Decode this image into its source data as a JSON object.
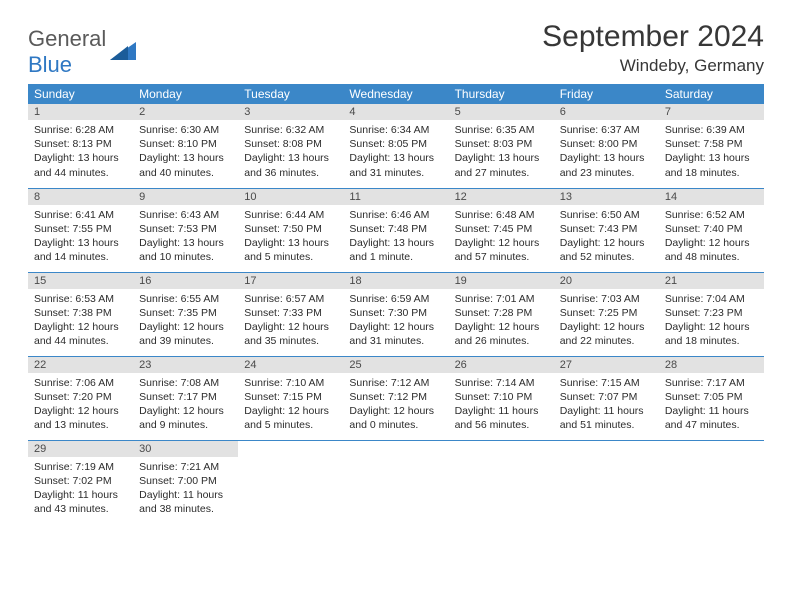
{
  "logo": {
    "word1": "General",
    "word2": "Blue"
  },
  "title": "September 2024",
  "location": "Windeby, Germany",
  "header_bg": "#3b87c8",
  "daynum_bg": "#e2e2e2",
  "text_color": "#2c2c2c",
  "weekdays": [
    "Sunday",
    "Monday",
    "Tuesday",
    "Wednesday",
    "Thursday",
    "Friday",
    "Saturday"
  ],
  "weeks": [
    [
      {
        "n": "1",
        "sr": "6:28 AM",
        "ss": "8:13 PM",
        "dl": "13 hours and 44 minutes."
      },
      {
        "n": "2",
        "sr": "6:30 AM",
        "ss": "8:10 PM",
        "dl": "13 hours and 40 minutes."
      },
      {
        "n": "3",
        "sr": "6:32 AM",
        "ss": "8:08 PM",
        "dl": "13 hours and 36 minutes."
      },
      {
        "n": "4",
        "sr": "6:34 AM",
        "ss": "8:05 PM",
        "dl": "13 hours and 31 minutes."
      },
      {
        "n": "5",
        "sr": "6:35 AM",
        "ss": "8:03 PM",
        "dl": "13 hours and 27 minutes."
      },
      {
        "n": "6",
        "sr": "6:37 AM",
        "ss": "8:00 PM",
        "dl": "13 hours and 23 minutes."
      },
      {
        "n": "7",
        "sr": "6:39 AM",
        "ss": "7:58 PM",
        "dl": "13 hours and 18 minutes."
      }
    ],
    [
      {
        "n": "8",
        "sr": "6:41 AM",
        "ss": "7:55 PM",
        "dl": "13 hours and 14 minutes."
      },
      {
        "n": "9",
        "sr": "6:43 AM",
        "ss": "7:53 PM",
        "dl": "13 hours and 10 minutes."
      },
      {
        "n": "10",
        "sr": "6:44 AM",
        "ss": "7:50 PM",
        "dl": "13 hours and 5 minutes."
      },
      {
        "n": "11",
        "sr": "6:46 AM",
        "ss": "7:48 PM",
        "dl": "13 hours and 1 minute."
      },
      {
        "n": "12",
        "sr": "6:48 AM",
        "ss": "7:45 PM",
        "dl": "12 hours and 57 minutes."
      },
      {
        "n": "13",
        "sr": "6:50 AM",
        "ss": "7:43 PM",
        "dl": "12 hours and 52 minutes."
      },
      {
        "n": "14",
        "sr": "6:52 AM",
        "ss": "7:40 PM",
        "dl": "12 hours and 48 minutes."
      }
    ],
    [
      {
        "n": "15",
        "sr": "6:53 AM",
        "ss": "7:38 PM",
        "dl": "12 hours and 44 minutes."
      },
      {
        "n": "16",
        "sr": "6:55 AM",
        "ss": "7:35 PM",
        "dl": "12 hours and 39 minutes."
      },
      {
        "n": "17",
        "sr": "6:57 AM",
        "ss": "7:33 PM",
        "dl": "12 hours and 35 minutes."
      },
      {
        "n": "18",
        "sr": "6:59 AM",
        "ss": "7:30 PM",
        "dl": "12 hours and 31 minutes."
      },
      {
        "n": "19",
        "sr": "7:01 AM",
        "ss": "7:28 PM",
        "dl": "12 hours and 26 minutes."
      },
      {
        "n": "20",
        "sr": "7:03 AM",
        "ss": "7:25 PM",
        "dl": "12 hours and 22 minutes."
      },
      {
        "n": "21",
        "sr": "7:04 AM",
        "ss": "7:23 PM",
        "dl": "12 hours and 18 minutes."
      }
    ],
    [
      {
        "n": "22",
        "sr": "7:06 AM",
        "ss": "7:20 PM",
        "dl": "12 hours and 13 minutes."
      },
      {
        "n": "23",
        "sr": "7:08 AM",
        "ss": "7:17 PM",
        "dl": "12 hours and 9 minutes."
      },
      {
        "n": "24",
        "sr": "7:10 AM",
        "ss": "7:15 PM",
        "dl": "12 hours and 5 minutes."
      },
      {
        "n": "25",
        "sr": "7:12 AM",
        "ss": "7:12 PM",
        "dl": "12 hours and 0 minutes."
      },
      {
        "n": "26",
        "sr": "7:14 AM",
        "ss": "7:10 PM",
        "dl": "11 hours and 56 minutes."
      },
      {
        "n": "27",
        "sr": "7:15 AM",
        "ss": "7:07 PM",
        "dl": "11 hours and 51 minutes."
      },
      {
        "n": "28",
        "sr": "7:17 AM",
        "ss": "7:05 PM",
        "dl": "11 hours and 47 minutes."
      }
    ],
    [
      {
        "n": "29",
        "sr": "7:19 AM",
        "ss": "7:02 PM",
        "dl": "11 hours and 43 minutes."
      },
      {
        "n": "30",
        "sr": "7:21 AM",
        "ss": "7:00 PM",
        "dl": "11 hours and 38 minutes."
      },
      null,
      null,
      null,
      null,
      null
    ]
  ],
  "labels": {
    "sunrise": "Sunrise:",
    "sunset": "Sunset:",
    "daylight": "Daylight:"
  }
}
